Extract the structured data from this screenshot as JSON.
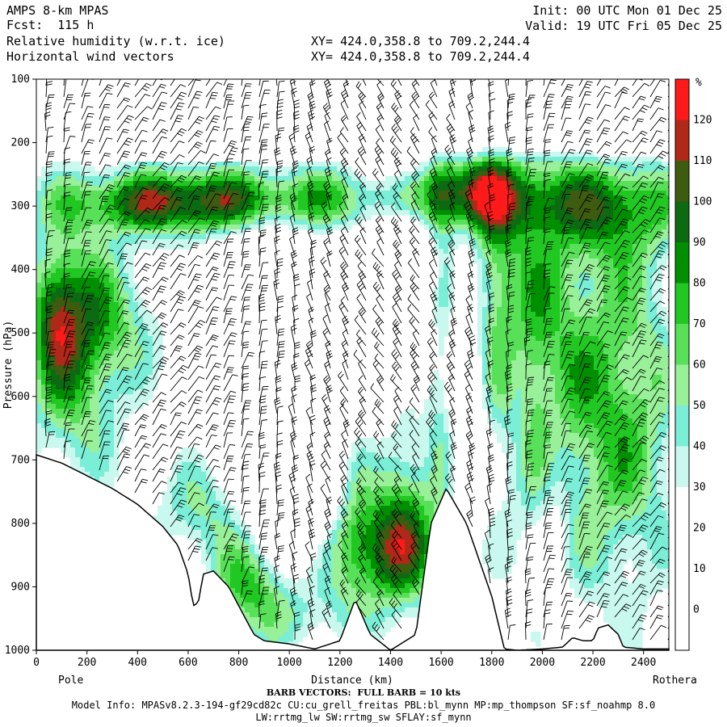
{
  "header": {
    "model": "AMPS 8-km MPAS",
    "fcst": "Fcst:  115 h",
    "field1": "Relative humidity (w.r.t. ice)",
    "field2": "Horizontal wind vectors",
    "xy1": "XY= 424.0,358.8 to 709.2,244.4",
    "xy2": "XY= 424.0,358.8 to 709.2,244.4",
    "init": "Init: 00 UTC Mon 01 Dec 25",
    "valid": "Valid: 19 UTC Fri 05 Dec 25"
  },
  "colors": {
    "bands": [
      "#ffffff",
      "#ffffff",
      "#ffffff",
      "#ffffff",
      "#ffffff",
      "#c8f8ee",
      "#7aeed6",
      "#98f098",
      "#58e058",
      "#22c822",
      "#008f00",
      "#0b6a12",
      "#3d5c10",
      "#b02818",
      "#ff1a1a"
    ],
    "ground": "#ffffff"
  },
  "colorbar": {
    "unit": "%",
    "labels": [
      "120",
      "110",
      "100",
      "90",
      "80",
      "70",
      "60",
      "50",
      "40",
      "30",
      "20",
      "10",
      "0"
    ]
  },
  "chart_data": {
    "type": "heatmap",
    "title": "Relative humidity (w.r.t. ice)",
    "overlay": "Horizontal wind vectors",
    "xlabel": "Distance (km)",
    "ylabel": "Pressure (hPa)",
    "x_range": [
      0,
      2500
    ],
    "y_range": [
      1000,
      100
    ],
    "x_ticks": [
      "0",
      "200",
      "400",
      "600",
      "800",
      "1000",
      "1200",
      "1400",
      "1600",
      "1800",
      "2000",
      "2200",
      "2400"
    ],
    "y_ticks": [
      "100",
      "200",
      "300",
      "400",
      "500",
      "600",
      "700",
      "800",
      "900",
      "1000"
    ],
    "x_end_labels": [
      "Pole",
      "Rothera"
    ],
    "levels": [
      0,
      10,
      20,
      30,
      40,
      50,
      60,
      70,
      80,
      90,
      100,
      110,
      120
    ],
    "terrain_hpa": [
      [
        0,
        692
      ],
      [
        100,
        705
      ],
      [
        200,
        725
      ],
      [
        300,
        745
      ],
      [
        400,
        770
      ],
      [
        500,
        805
      ],
      [
        560,
        835
      ],
      [
        600,
        880
      ],
      [
        620,
        930
      ],
      [
        640,
        925
      ],
      [
        660,
        880
      ],
      [
        700,
        875
      ],
      [
        760,
        900
      ],
      [
        820,
        945
      ],
      [
        860,
        975
      ],
      [
        900,
        985
      ],
      [
        1000,
        990
      ],
      [
        1100,
        998
      ],
      [
        1200,
        985
      ],
      [
        1260,
        920
      ],
      [
        1320,
        975
      ],
      [
        1400,
        1000
      ],
      [
        1500,
        975
      ],
      [
        1560,
        800
      ],
      [
        1620,
        745
      ],
      [
        1700,
        800
      ],
      [
        1800,
        915
      ],
      [
        1850,
        998
      ],
      [
        1900,
        1000
      ],
      [
        2000,
        998
      ],
      [
        2080,
        995
      ],
      [
        2120,
        980
      ],
      [
        2160,
        985
      ],
      [
        2200,
        985
      ],
      [
        2220,
        965
      ],
      [
        2260,
        960
      ],
      [
        2300,
        975
      ],
      [
        2320,
        995
      ],
      [
        2400,
        998
      ],
      [
        2500,
        998
      ]
    ],
    "rh_blobs": [
      {
        "x": 1300,
        "p": 290,
        "sx": 1100,
        "sp": 55,
        "v": 58
      },
      {
        "x": 400,
        "p": 295,
        "sx": 280,
        "sp": 45,
        "v": 35
      },
      {
        "x": 700,
        "p": 295,
        "sx": 330,
        "sp": 55,
        "v": 45
      },
      {
        "x": 1700,
        "p": 270,
        "sx": 180,
        "sp": 60,
        "v": 50
      },
      {
        "x": 2300,
        "p": 310,
        "sx": 250,
        "sp": 80,
        "v": 40
      },
      {
        "x": 150,
        "p": 520,
        "sx": 200,
        "sp": 190,
        "v": 70
      },
      {
        "x": 80,
        "p": 470,
        "sx": 90,
        "sp": 90,
        "v": 45
      },
      {
        "x": 350,
        "p": 480,
        "sx": 200,
        "sp": 90,
        "v": 25
      },
      {
        "x": 1350,
        "p": 840,
        "sx": 260,
        "sp": 90,
        "v": 80
      },
      {
        "x": 1450,
        "p": 700,
        "sx": 120,
        "sp": 200,
        "v": 50
      },
      {
        "x": 850,
        "p": 900,
        "sx": 160,
        "sp": 80,
        "v": 65
      },
      {
        "x": 1250,
        "p": 700,
        "sx": 80,
        "sp": 160,
        "v": 35
      },
      {
        "x": 1950,
        "p": 500,
        "sx": 200,
        "sp": 300,
        "v": 55
      },
      {
        "x": 2300,
        "p": 620,
        "sx": 250,
        "sp": 300,
        "v": 60
      },
      {
        "x": 1800,
        "p": 380,
        "sx": 80,
        "sp": 180,
        "v": 30
      },
      {
        "x": 1600,
        "p": 500,
        "sx": 60,
        "sp": 300,
        "v": 40
      },
      {
        "x": 650,
        "p": 780,
        "sx": 180,
        "sp": 80,
        "v": 40
      },
      {
        "x": 1100,
        "p": 950,
        "sx": 200,
        "sp": 60,
        "v": 25
      },
      {
        "x": 880,
        "p": 470,
        "sx": 170,
        "sp": 160,
        "v": -55
      },
      {
        "x": 1450,
        "p": 430,
        "sx": 140,
        "sp": 230,
        "v": -55
      },
      {
        "x": 1150,
        "p": 560,
        "sx": 170,
        "sp": 170,
        "v": -50
      },
      {
        "x": 1050,
        "p": 800,
        "sx": 220,
        "sp": 110,
        "v": -40
      },
      {
        "x": 1700,
        "p": 560,
        "sx": 90,
        "sp": 260,
        "v": -25
      },
      {
        "x": 2050,
        "p": 780,
        "sx": 60,
        "sp": 200,
        "v": -20
      },
      {
        "x": 1900,
        "p": 600,
        "sx": 50,
        "sp": 120,
        "v": -15
      }
    ],
    "upper_dry_hpa": 175
  },
  "footer": {
    "barb_note": "BARB VECTORS:  FULL BARB = 10 kts",
    "model_info": "Model Info: MPASv8.2.3-194-gf29cd82c CU:cu_grell_freitas PBL:bl_mynn MP:mp_thompson SF:sf_noahmp 8.0",
    "model_info2": "LW:rrtmg_lw SW:rrtmg_sw SFLAY:sf_mynn"
  }
}
